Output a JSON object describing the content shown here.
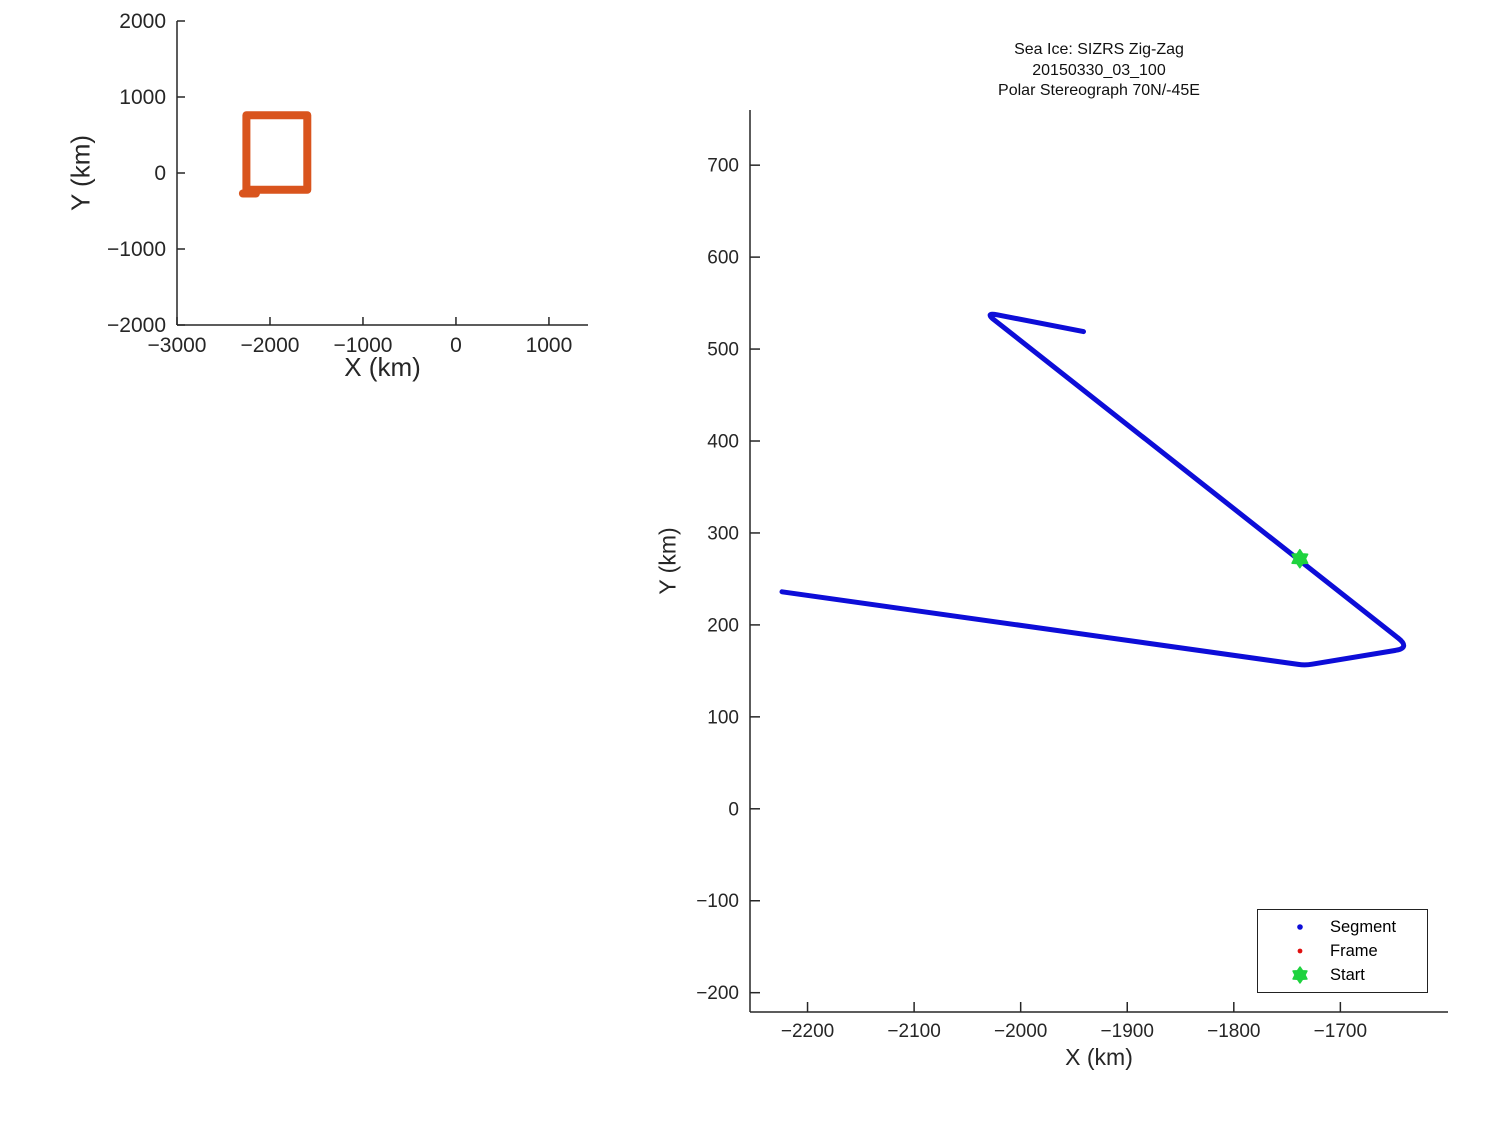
{
  "figure": {
    "background": "#ffffff",
    "axis_color": "#262626"
  },
  "chart_data": [
    {
      "id": "overview-map",
      "type": "line",
      "title": "",
      "xlabel": "X (km)",
      "ylabel": "Y (km)",
      "xlim": [
        -3000,
        1420
      ],
      "ylim": [
        -2000,
        2000
      ],
      "xticks": [
        -3000,
        -2000,
        -1000,
        0,
        1000
      ],
      "yticks": [
        -2000,
        -1000,
        0,
        1000,
        2000
      ],
      "grid": false,
      "legend_position": "none",
      "series": [
        {
          "name": "flight-region-box",
          "color": "#d9541d",
          "linewidth": 8,
          "closed": true,
          "points": [
            [
              -2254,
              -221
            ],
            [
              -2254,
              760
            ],
            [
              -1599,
              760
            ],
            [
              -1599,
              -221
            ]
          ]
        },
        {
          "name": "flight-region-box-overlap",
          "color": "#d9541d",
          "linewidth": 8,
          "closed": false,
          "points": [
            [
              -2291,
              -270
            ],
            [
              -2151,
              -270
            ]
          ]
        }
      ]
    },
    {
      "id": "zigzag-track",
      "type": "line",
      "title_lines": [
        "Sea Ice: SIZRS Zig-Zag",
        "20150330_03_100",
        "Polar Stereograph 70N/-45E"
      ],
      "xlabel": "X (km)",
      "ylabel": "Y (km)",
      "xlim": [
        -2254,
        -1599
      ],
      "ylim": [
        -221,
        760
      ],
      "xticks": [
        -2200,
        -2100,
        -2000,
        -1900,
        -1800,
        -1700
      ],
      "yticks": [
        700,
        600,
        500,
        400,
        300,
        200,
        100,
        0,
        -100,
        -200
      ],
      "grid": false,
      "series": [
        {
          "name": "Segment",
          "color": "#0d0dd8",
          "linewidth": 5,
          "closed": false,
          "corner_radius": [
            13,
            16,
            7
          ],
          "points": [
            [
              -1941,
              519
            ],
            [
              -2034,
              540
            ],
            [
              -1634,
              175
            ],
            [
              -1733,
              156
            ],
            [
              -2224,
              236
            ]
          ]
        }
      ],
      "start_marker": {
        "x": -1738,
        "y": 272,
        "color": "#1fd33f",
        "outer_radius": 9,
        "inner_ratio": 0.62
      },
      "legend": {
        "position": "southeast",
        "items": [
          {
            "label": "Segment",
            "marker": "dot",
            "color": "#0d0dd8",
            "dot_radius": 2.8
          },
          {
            "label": "Frame",
            "marker": "dot",
            "color": "#e01010",
            "dot_radius": 2.4
          },
          {
            "label": "Start",
            "marker": "hexagram",
            "color": "#1fd33f",
            "dot_radius": 8
          }
        ]
      }
    }
  ]
}
